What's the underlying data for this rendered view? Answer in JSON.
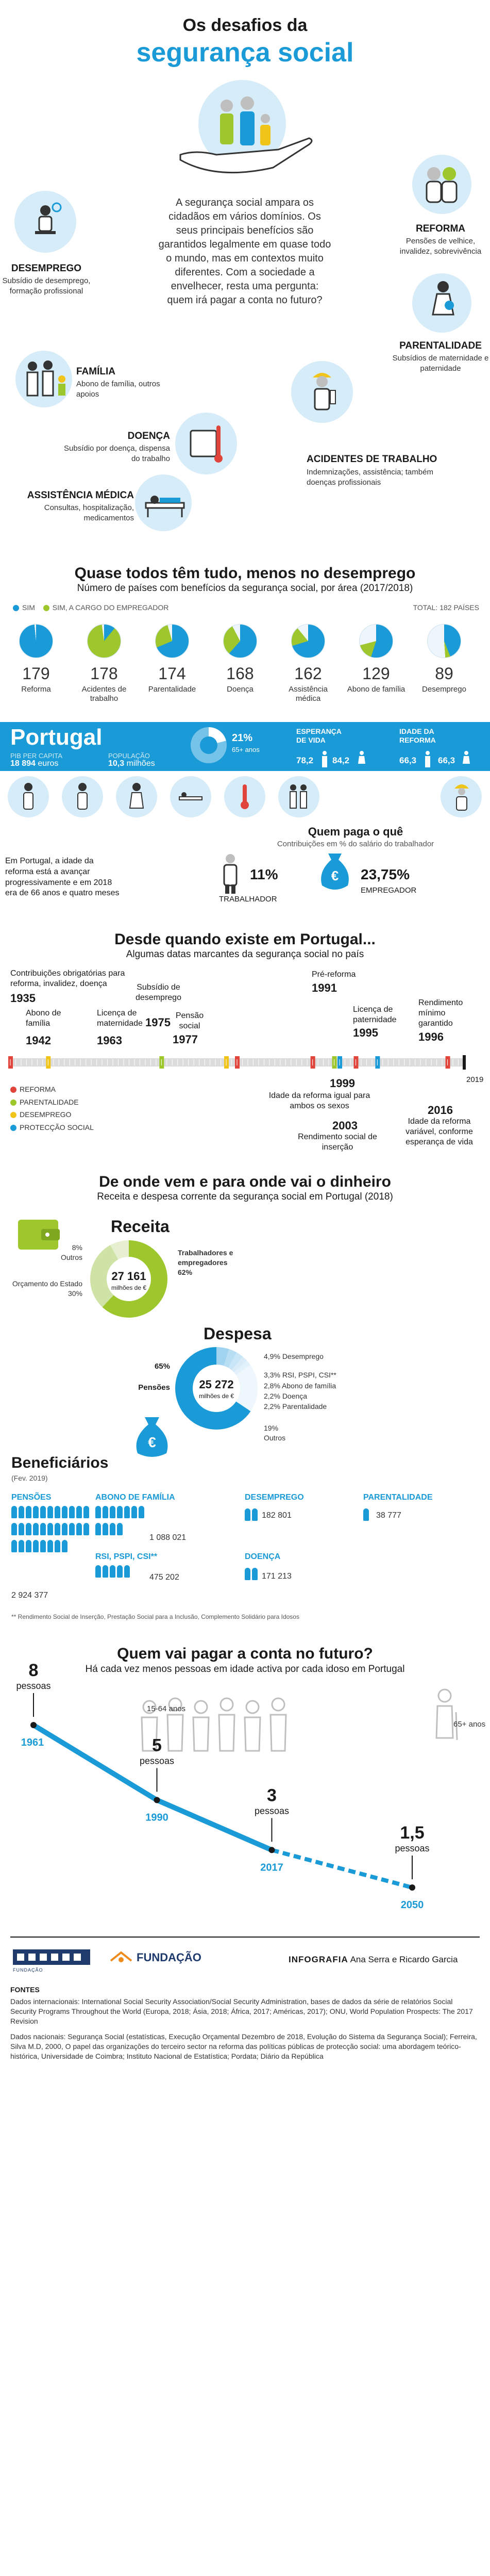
{
  "colors": {
    "blue": "#1a9ad6",
    "lightblue": "#d6ecf8",
    "green": "#9dc72c",
    "darkgreen": "#7fa81e",
    "orange": "#f08c1e",
    "yellow": "#f0c419",
    "red": "#e0443a",
    "grey": "#bfbfbf"
  },
  "header": {
    "title_line1": "Os desafios da",
    "title_line2": "segurança social"
  },
  "intro": {
    "text": "A segurança social ampara os cidadãos em vários domínios. Os seus principais benefícios são garantidos legalmente em quase todo o mundo, mas em contextos muito diferentes. Com a sociedade a envelhecer, resta uma pergunta: quem irá pagar a conta no futuro?"
  },
  "domains": {
    "reforma": {
      "title": "REFORMA",
      "desc": "Pensões de velhice, invalidez, sobrevivência"
    },
    "desemprego": {
      "title": "DESEMPREGO",
      "desc": "Subsídio de desemprego, formação profissional"
    },
    "parentalidade": {
      "title": "PARENTALIDADE",
      "desc": "Subsídios de maternidade e paternidade"
    },
    "familia": {
      "title": "FAMÍLIA",
      "desc": "Abono de família, outros apoios"
    },
    "doenca": {
      "title": "DOENÇA",
      "desc": "Subsídio por doença, dispensa do trabalho"
    },
    "acidentes": {
      "title": "ACIDENTES DE TRABALHO",
      "desc": "Indemnizações, assistência; também doenças profissionais"
    },
    "assistencia": {
      "title": "ASSISTÊNCIA MÉDICA",
      "desc": "Consultas, hospitalização, medicamentos"
    }
  },
  "countries": {
    "title": "Quase todos têm tudo, menos no desemprego",
    "subtitle": "Número de países com benefícios da segurança social, por área (2017/2018)",
    "legend_sim": "SIM",
    "legend_employer": "SIM, A CARGO DO EMPREGADOR",
    "total": "TOTAL: 182 PAÍSES"
  },
  "chart_data": {
    "type": "pie",
    "total": 182,
    "categories": [
      "Reforma",
      "Acidentes de trabalho",
      "Parentalidade",
      "Doença",
      "Assistência médica",
      "Abono de família",
      "Desemprego"
    ],
    "values": [
      "179",
      "178",
      "174",
      "168",
      "162",
      "129",
      "89"
    ],
    "series": [
      {
        "name": "SIM",
        "values": [
          179,
          20,
          125,
          112,
          128,
          100,
          80
        ]
      },
      {
        "name": "SIM, A CARGO DO EMPREGADOR",
        "values": [
          0,
          158,
          49,
          56,
          34,
          29,
          9
        ]
      }
    ]
  },
  "portugal": {
    "name": "Portugal",
    "pib_label": "PIB PER CAPITA",
    "pib_value": "18 894",
    "pib_unit": "euros",
    "pop_label": "POPULAÇÃO",
    "pop_value": "10,3",
    "pop_unit": "milhões",
    "elderly_pct": "21%",
    "elderly_label": "65+ anos",
    "life_label": "ESPERANÇA DE VIDA",
    "life_men": "78,2",
    "life_women": "84,2",
    "ret_label": "IDADE DA REFORMA",
    "ret_men": "66,3",
    "ret_women": "66,3"
  },
  "who_pays": {
    "title": "Quem paga o quê",
    "subtitle": "Contribuições em % do salário do trabalhador",
    "worker_pct": "11%",
    "worker_label": "TRABALHADOR",
    "employer_pct": "23,75%",
    "employer_label": "EMPREGADOR",
    "note": "Em Portugal, a idade da reforma está a avançar progressivamente e em 2018 era de 66 anos e quatro meses"
  },
  "timeline": {
    "title": "Desde quando existe em Portugal...",
    "subtitle": "Algumas datas marcantes da segurança social no país",
    "events_top": [
      {
        "label": "Contribuições obrigatórias para reforma, invalidez, doença",
        "year": "1935"
      },
      {
        "label": "Abono de família",
        "year": "1942"
      },
      {
        "label": "Licença de maternidade",
        "year": "1963"
      },
      {
        "label": "Subsídio de desemprego",
        "year": "1975"
      },
      {
        "label": "Pensão social",
        "year": "1977"
      },
      {
        "label": "Pré-reforma",
        "year": "1991"
      },
      {
        "label": "Licença de paternidade",
        "year": "1995"
      },
      {
        "label": "Rendimento mínimo garantido",
        "year": "1996"
      }
    ],
    "events_bottom": [
      {
        "year": "1999",
        "label": "Idade da reforma igual para ambos os sexos"
      },
      {
        "year": "2003",
        "label": "Rendimento social de inserção"
      },
      {
        "year": "2016",
        "label": "Idade da reforma variável, conforme esperança de vida"
      }
    ],
    "end_year": "2019",
    "legend": [
      "REFORMA",
      "PARENTALIDADE",
      "DESEMPREGO",
      "PROTECÇÃO SOCIAL"
    ]
  },
  "money": {
    "title": "De onde vem e para onde vai o dinheiro",
    "subtitle": "Receita e despesa corrente da segurança social em Portugal (2018)",
    "receita_label": "Receita",
    "receita_value": "27 161",
    "receita_unit": "milhões de €",
    "receita_items": [
      {
        "label": "Outros",
        "pct": "8%"
      },
      {
        "label": "Orçamento do Estado",
        "pct": "30%"
      },
      {
        "label": "Trabalhadores e empregadores",
        "pct": "62%"
      }
    ],
    "despesa_label": "Despesa",
    "despesa_value": "25 272",
    "despesa_unit": "milhões de €",
    "despesa_items": [
      {
        "pct": "4,9%",
        "label": "Desemprego"
      },
      {
        "pct": "3,3%",
        "label": "RSI, PSPI, CSI**"
      },
      {
        "pct": "2,8%",
        "label": "Abono de família"
      },
      {
        "pct": "2,2%",
        "label": "Doença"
      },
      {
        "pct": "2,2%",
        "label": "Parentalidade"
      }
    ],
    "pensoes_pct": "65%",
    "pensoes_label": "Pensões",
    "outros_pct": "19%",
    "outros_label": "Outros"
  },
  "beneficiaries": {
    "title": "Beneficiários",
    "date": "(Fev. 2019)",
    "pensoes": {
      "label": "PENSÕES",
      "value": "2 924 377"
    },
    "abono": {
      "label": "ABONO DE FAMÍLIA",
      "value": "1 088 021"
    },
    "rsi": {
      "label": "RSI, PSPI, CSI**",
      "value": "475 202"
    },
    "desemprego": {
      "label": "DESEMPREGO",
      "value": "182 801"
    },
    "doenca": {
      "label": "DOENÇA",
      "value": "171 213"
    },
    "parentalidade": {
      "label": "PARENTALIDADE",
      "value": "38 777"
    },
    "footnote": "** Rendimento Social de Inserção, Prestação Social para a Inclusão, Complemento Solidário para Idosos"
  },
  "future": {
    "title": "Quem vai pagar a conta no futuro?",
    "subtitle": "Há cada vez menos pessoas em idade activa por cada idoso em Portugal",
    "age_active": "15-64 anos",
    "age_old": "65+ anos",
    "points": [
      {
        "year": "1961",
        "value": "8",
        "unit": "pessoas"
      },
      {
        "year": "1990",
        "value": "5",
        "unit": "pessoas"
      },
      {
        "year": "2017",
        "value": "3",
        "unit": "pessoas"
      },
      {
        "year": "2050",
        "value": "1,5",
        "unit": "pessoas"
      }
    ]
  },
  "footer": {
    "logo_left": "FUNDAÇÃO",
    "logo_right": "FUNDAÇÃO",
    "credit_label": "INFOGRAFIA",
    "credit_names": "Ana Serra e Ricardo Garcia",
    "sources_title": "FONTES",
    "sources_intl": "Dados internacionais: International Social Security Association/Social Security Administration, bases de dados da série de relatórios Social Security Programs Throughout the World (Europa, 2018; Ásia, 2018; África, 2017; Américas, 2017); ONU, World Population Prospects: The 2017 Revision",
    "sources_nat": "Dados nacionais: Segurança Social (estatísticas, Execução Orçamental Dezembro de 2018, Evolução do Sistema da Segurança Social); Ferreira, Silva M.D, 2000, O papel das organizações do terceiro sector na reforma das políticas públicas de protecção social: uma abordagem teórico-histórica, Universidade de Coimbra; Instituto Nacional de Estatística; Pordata; Diário da República"
  }
}
